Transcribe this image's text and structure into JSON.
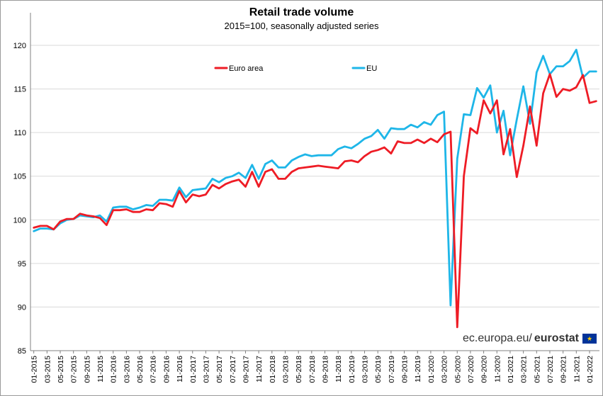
{
  "title": "Retail trade volume",
  "subtitle": "2015=100, seasonally adjusted series",
  "branding": {
    "prefix": "ec.europa.eu/",
    "name": "eurostat"
  },
  "colors": {
    "euro_area": "#ee1c25",
    "eu": "#1eb6e8",
    "grid": "#d9d9d9",
    "axis": "#808080"
  },
  "chart_data": {
    "type": "line",
    "title": "Retail trade volume",
    "subtitle": "2015=100, seasonally adjusted series",
    "xlabel": "",
    "ylabel": "",
    "ylim": [
      85,
      120
    ],
    "yticks": [
      85,
      90,
      95,
      100,
      105,
      110,
      115,
      120
    ],
    "grid": true,
    "legend_position": "top-left",
    "x": [
      "01-2015",
      "02-2015",
      "03-2015",
      "04-2015",
      "05-2015",
      "06-2015",
      "07-2015",
      "08-2015",
      "09-2015",
      "10-2015",
      "11-2015",
      "12-2015",
      "01-2016",
      "02-2016",
      "03-2016",
      "04-2016",
      "05-2016",
      "06-2016",
      "07-2016",
      "08-2016",
      "09-2016",
      "10-2016",
      "11-2016",
      "12-2016",
      "01-2017",
      "02-2017",
      "03-2017",
      "04-2017",
      "05-2017",
      "06-2017",
      "07-2017",
      "08-2017",
      "09-2017",
      "10-2017",
      "11-2017",
      "12-2017",
      "01-2018",
      "02-2018",
      "03-2018",
      "04-2018",
      "05-2018",
      "06-2018",
      "07-2018",
      "08-2018",
      "09-2018",
      "10-2018",
      "11-2018",
      "12-2018",
      "01-2019",
      "02-2019",
      "03-2019",
      "04-2019",
      "05-2019",
      "06-2019",
      "07-2019",
      "08-2019",
      "09-2019",
      "10-2019",
      "11-2019",
      "12-2019",
      "01-2020",
      "02-2020",
      "03-2020",
      "04-2020",
      "05-2020",
      "06-2020",
      "07-2020",
      "08-2020",
      "09-2020",
      "10-2020",
      "11-2020",
      "12-2020",
      "01-2021",
      "02-2021",
      "03-2021",
      "04-2021",
      "05-2021",
      "06-2021",
      "07-2021",
      "08-2021",
      "09-2021",
      "10-2021",
      "11-2021",
      "12-2021",
      "01-2022",
      "02-2022"
    ],
    "tick_labels": [
      "01-2015",
      "03-2015",
      "05-2015",
      "07-2015",
      "09-2015",
      "11-2015",
      "01-2016",
      "03-2016",
      "05-2016",
      "07-2016",
      "09-2016",
      "11-2016",
      "01-2017",
      "03-2017",
      "05-2017",
      "07-2017",
      "09-2017",
      "11-2017",
      "01-2018",
      "03-2018",
      "05-2018",
      "07-2018",
      "09-2018",
      "11-2018",
      "01-2019",
      "03-2019",
      "05-2019",
      "07-2019",
      "09-2019",
      "11-2019",
      "01-2020",
      "03-2020",
      "05-2020",
      "07-2020",
      "09-2020",
      "11-2020",
      "01-2021",
      "03-2021",
      "05-2021",
      "07-2021",
      "09-2021",
      "11-2021",
      "01-2022"
    ],
    "series": [
      {
        "name": "Euro area",
        "color": "#ee1c25",
        "values": [
          99.1,
          99.3,
          99.3,
          98.9,
          99.8,
          100.1,
          100.1,
          100.7,
          100.5,
          100.4,
          100.2,
          99.4,
          101.1,
          101.1,
          101.2,
          100.9,
          100.9,
          101.2,
          101.1,
          101.9,
          101.8,
          101.5,
          103.3,
          102.0,
          102.9,
          102.7,
          102.9,
          104.0,
          103.6,
          104.1,
          104.4,
          104.6,
          103.8,
          105.5,
          103.8,
          105.5,
          105.8,
          104.7,
          104.7,
          105.5,
          105.9,
          106.0,
          106.1,
          106.2,
          106.1,
          106.0,
          105.9,
          106.7,
          106.8,
          106.6,
          107.3,
          107.8,
          108.0,
          108.3,
          107.6,
          109.0,
          108.8,
          108.8,
          109.2,
          108.8,
          109.3,
          108.9,
          109.8,
          110.1,
          87.7,
          105.0,
          110.5,
          109.9,
          113.7,
          112.2,
          113.7,
          107.5,
          110.4,
          104.9,
          108.5,
          113.0,
          108.5,
          114.5,
          116.7,
          114.1,
          115.0,
          114.8,
          115.2,
          116.6,
          113.4,
          113.6
        ]
      },
      {
        "name": "EU",
        "color": "#1eb6e8",
        "values": [
          98.7,
          99.0,
          99.0,
          98.9,
          99.6,
          100.0,
          100.1,
          100.5,
          100.4,
          100.3,
          100.5,
          99.8,
          101.4,
          101.5,
          101.5,
          101.2,
          101.4,
          101.7,
          101.6,
          102.3,
          102.3,
          102.2,
          103.7,
          102.6,
          103.4,
          103.5,
          103.6,
          104.7,
          104.3,
          104.8,
          105.0,
          105.4,
          104.8,
          106.3,
          104.7,
          106.4,
          106.8,
          106.0,
          106.0,
          106.8,
          107.2,
          107.5,
          107.3,
          107.4,
          107.4,
          107.4,
          108.1,
          108.4,
          108.2,
          108.7,
          109.3,
          109.6,
          110.3,
          109.3,
          110.5,
          110.4,
          110.4,
          110.9,
          110.6,
          111.2,
          110.9,
          112.0,
          112.4,
          90.2,
          107.0,
          112.1,
          112.0,
          115.1,
          114.0,
          115.4,
          110.0,
          112.5,
          107.4,
          111.5,
          115.3,
          111.0,
          116.9,
          118.8,
          116.7,
          117.6,
          117.6,
          118.2,
          119.5,
          116.3,
          117.0,
          117.0
        ]
      }
    ]
  }
}
